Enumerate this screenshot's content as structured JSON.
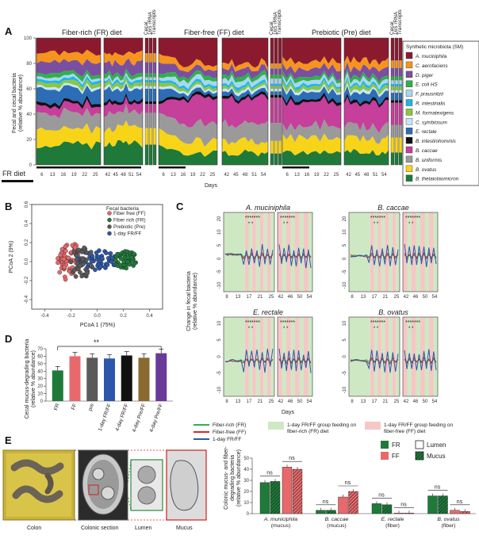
{
  "panels": {
    "A": {
      "letter": "A",
      "titles": [
        "Fiber-rich (FR) diet",
        "Fiber-free (FF) diet",
        "Prebiotic (Pre) diet"
      ],
      "side_labels": [
        "Cecal",
        "16S rRNA",
        "Transcripts"
      ],
      "ylabel_line1": "Fecal and cecal bacteria",
      "ylabel_line2": "(relative % abundance)",
      "xlabel": "Days",
      "x_ticks": [
        "6",
        "13",
        "16",
        "19",
        "22",
        "25",
        "42",
        "45",
        "48",
        "51",
        "54"
      ],
      "y_ticks": [
        "0",
        "20",
        "40",
        "60",
        "80",
        "100"
      ],
      "fr_diet_label": "FR diet",
      "legend_title": "Synthetic microbiota (SM)",
      "legend": [
        {
          "name": "A. muciniphila",
          "color": "#8b1a2f"
        },
        {
          "name": "C. aerofaciens",
          "color": "#f7941d"
        },
        {
          "name": "D. piger",
          "color": "#7b4fa0"
        },
        {
          "name": "E. coli HS",
          "color": "#2db24a"
        },
        {
          "name": "F. prausnitzii",
          "color": "#a9d6f0"
        },
        {
          "name": "R. intestinalis",
          "color": "#1fb5e8"
        },
        {
          "name": "M. formatexigens",
          "color": "#8dc63f"
        },
        {
          "name": "C. symbiosum",
          "color": "#c8e6f5"
        },
        {
          "name": "E. rectale",
          "color": "#2d6db5"
        },
        {
          "name": "B. intestinihominis",
          "color": "#111111"
        },
        {
          "name": "B. caccae",
          "color": "#c53f9b"
        },
        {
          "name": "B. uniformis",
          "color": "#9a9a9a"
        },
        {
          "name": "B. ovatus",
          "color": "#f7d417"
        },
        {
          "name": "B. thetaiotaomicron",
          "color": "#1f7a3a"
        }
      ],
      "diet_layers": {
        "FR": [
          12,
          7,
          9,
          3,
          2,
          2,
          3,
          2,
          10,
          2,
          7,
          12,
          13,
          16
        ],
        "FF": [
          20,
          4,
          5,
          3,
          4,
          2,
          2,
          2,
          3,
          2,
          20,
          14,
          10,
          9
        ],
        "Pre": [
          18,
          6,
          7,
          3,
          3,
          2,
          3,
          2,
          6,
          2,
          18,
          10,
          12,
          10
        ]
      }
    },
    "B": {
      "letter": "B",
      "legend_title": "Fecal bacteria",
      "legend": [
        {
          "name": "Fiber free (FF)",
          "color": "#e8696b"
        },
        {
          "name": "Fiber rich (FR)",
          "color": "#1f7a3a"
        },
        {
          "name": "Prebiotic (Pre)",
          "color": "#5a5a5a"
        },
        {
          "name": "1-day FR/FF",
          "color": "#2d57a8"
        }
      ],
      "xlabel": "PCoA 1 (75%)",
      "ylabel": "PCoA 2 (9%)",
      "x_ticks": [
        "-0.4",
        "-0.2",
        "0.0",
        "0.2",
        "0.4"
      ],
      "y_ticks": [
        "-0.4",
        "-0.2",
        "0.0",
        "0.2",
        "0.4",
        "0.6"
      ]
    },
    "C": {
      "letter": "C",
      "subplots": [
        "A. muciniphila",
        "B. caccae",
        "E. rectale",
        "B. ovatus"
      ],
      "ylabel_line1": "Change in fecal bacteria",
      "ylabel_line2": "(relative % abundance)",
      "xlabel": "Days",
      "x_ticks_left": [
        "8",
        "13",
        "17",
        "21",
        "25"
      ],
      "x_ticks_right": [
        "42",
        "46",
        "50",
        "54"
      ],
      "y_ticks_top": [
        "-10",
        "-5",
        "0",
        "5",
        "10",
        "20"
      ],
      "y_ticks_bottom": [
        "-10",
        "-5",
        "0",
        "5",
        "10"
      ],
      "line_legend": [
        {
          "name": "Fiber-rich (FR)",
          "color": "#2db24a"
        },
        {
          "name": "Fiber-free (FF)",
          "color": "#d62728"
        },
        {
          "name": "1-day FR/FF",
          "color": "#2d57a8"
        }
      ],
      "shade_legend": [
        {
          "name": "1-day FR/FF group feeding on fiber-rich (FR) diet",
          "color": "#cfe8c4"
        },
        {
          "name": "1-day FR/FF group feeding on fiber-free (FF) diet",
          "color": "#f7c6c6"
        }
      ]
    },
    "D": {
      "letter": "D",
      "ylabel_line1": "Cecal mucus-degrading bacteria",
      "ylabel_line2": "(relative % abundance)",
      "y_ticks": [
        "0",
        "10",
        "20",
        "30",
        "40",
        "50",
        "60",
        "70"
      ],
      "significance": "**",
      "chart_data": {
        "type": "bar",
        "categories": [
          "FR",
          "FF",
          "pre",
          "1-day FR/FF",
          "4-day FR/FF",
          "4-day Pre/FF",
          "4-day Pre/FF"
        ],
        "values": [
          41,
          60,
          58,
          57,
          61,
          58,
          64
        ],
        "colors": [
          "#1f7a3a",
          "#e8696b",
          "#5a5a5a",
          "#2d57a8",
          "#111111",
          "#8b6a2f",
          "#6a3a9a"
        ],
        "ylim": [
          0,
          70
        ]
      }
    },
    "E": {
      "letter": "E",
      "image_labels": [
        "Colon",
        "Colonic section",
        "Lumen",
        "Mucus"
      ],
      "ylabel_line1": "Colonic mucus- and fiber-",
      "ylabel_line2": "degrading bacteria",
      "ylabel_line3": "(relative % abundance)",
      "y_ticks": [
        "0",
        "10",
        "20",
        "30",
        "40",
        "50"
      ],
      "legend_fr": "FR",
      "legend_ff": "FF",
      "legend_lumen": "Lumen",
      "legend_mucus": "Mucus",
      "ns_label": "ns",
      "groups": [
        {
          "name": "A. municiphila",
          "sub": "(mucus)",
          "values": [
            28,
            29,
            42,
            40
          ]
        },
        {
          "name": "B. caccae",
          "sub": "(mucus)",
          "values": [
            3,
            3,
            15,
            20
          ]
        },
        {
          "name": "E. rectale",
          "sub": "(fiber)",
          "values": [
            9,
            8,
            0.5,
            0.5
          ]
        },
        {
          "name": "B. ovatus",
          "sub": "(fiber)",
          "values": [
            16,
            16,
            3,
            2
          ]
        }
      ],
      "colors": {
        "FR": "#1f7a3a",
        "FF": "#e8696b"
      },
      "ylim": [
        0,
        50
      ]
    }
  }
}
